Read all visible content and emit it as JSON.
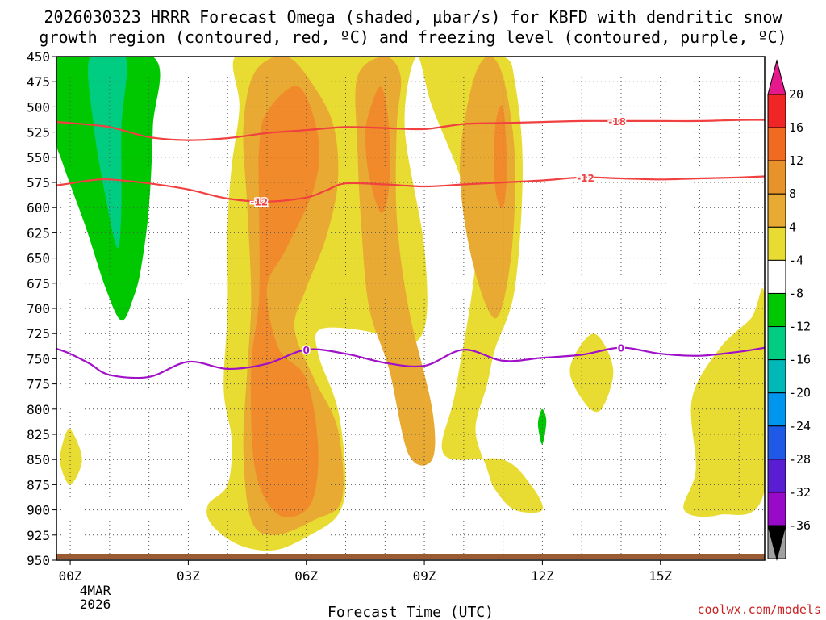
{
  "chart_data": {
    "type": "contour",
    "title_line1": "2026030323 HRRR Forecast Omega (shaded, µbar/s) for KBFD with dendritic snow",
    "title_line2": "growth region (contoured, red, ºC) and freezing level (contoured, purple, ºC)",
    "xlabel": "Forecast Time (UTC)",
    "credit": "coolwx.com/models",
    "date_line1": "4MAR",
    "date_line2": "2026",
    "x_range_hours": [
      -0.35,
      17.65
    ],
    "y_range_hpa": [
      450,
      950
    ],
    "y_ticks": [
      "450",
      "475",
      "500",
      "525",
      "550",
      "575",
      "600",
      "625",
      "650",
      "675",
      "700",
      "725",
      "750",
      "775",
      "800",
      "825",
      "850",
      "875",
      "900",
      "925",
      "950"
    ],
    "x_ticks": [
      {
        "hour": 0,
        "label": "00Z"
      },
      {
        "hour": 3,
        "label": "03Z"
      },
      {
        "hour": 6,
        "label": "06Z"
      },
      {
        "hour": 9,
        "label": "09Z"
      },
      {
        "hour": 12,
        "label": "12Z"
      },
      {
        "hour": 15,
        "label": "15Z"
      }
    ],
    "colorbar": {
      "labels": [
        "20",
        "16",
        "12",
        "8",
        "4",
        "-4",
        "-8",
        "-12",
        "-16",
        "-20",
        "-24",
        "-28",
        "-32",
        "-36"
      ],
      "colors": [
        "#e8b432",
        "#f02626",
        "#f06a20",
        "#e8922a",
        "#e8aa32",
        "#e8dc32",
        "#ffffff",
        "#00c800",
        "#00cc82",
        "#00b8b8",
        "#0096f0",
        "#1e5ae6",
        "#5a1ed2",
        "#960ac8",
        "#a0a0a0",
        "#000000"
      ]
    },
    "contours": [
      {
        "name": "-18 C isotherm",
        "color": "#f04040",
        "label": "-18",
        "points": [
          [
            -0.35,
            515
          ],
          [
            0,
            516
          ],
          [
            1,
            520
          ],
          [
            2,
            530
          ],
          [
            3,
            533
          ],
          [
            4,
            531
          ],
          [
            5,
            526
          ],
          [
            6,
            523
          ],
          [
            7,
            520
          ],
          [
            8,
            521
          ],
          [
            9,
            522
          ],
          [
            10,
            517
          ],
          [
            11,
            516
          ],
          [
            12,
            515
          ],
          [
            13,
            514
          ],
          [
            14,
            514
          ],
          [
            15,
            514
          ],
          [
            16,
            514
          ],
          [
            17,
            513
          ],
          [
            17.65,
            513
          ]
        ],
        "label_at": [
          13.9,
          514
        ]
      },
      {
        "name": "-12 C isotherm",
        "color": "#f04040",
        "label": "-12",
        "points": [
          [
            -0.35,
            578
          ],
          [
            0,
            576
          ],
          [
            0.5,
            573
          ],
          [
            1,
            572
          ],
          [
            2,
            576
          ],
          [
            3,
            582
          ],
          [
            4,
            591
          ],
          [
            5,
            594
          ],
          [
            6,
            590
          ],
          [
            6.5,
            583
          ],
          [
            7,
            576
          ],
          [
            8,
            577
          ],
          [
            9,
            579
          ],
          [
            10,
            577
          ],
          [
            11,
            575
          ],
          [
            12,
            573
          ],
          [
            13,
            570
          ],
          [
            14,
            571
          ],
          [
            15,
            572
          ],
          [
            16,
            571
          ],
          [
            17,
            570
          ],
          [
            17.65,
            569
          ]
        ],
        "label_at": [
          4.8,
          594
        ]
      },
      {
        "name": "-12 C isotherm (label 2)",
        "color": "#f04040",
        "label": "-12",
        "points": [],
        "label_at": [
          13.1,
          570
        ]
      },
      {
        "name": "0 C freezing level",
        "color": "#a010c8",
        "label": "0",
        "points": [
          [
            -0.35,
            740
          ],
          [
            0,
            745
          ],
          [
            0.5,
            755
          ],
          [
            1,
            766
          ],
          [
            2,
            768
          ],
          [
            3,
            753
          ],
          [
            4,
            760
          ],
          [
            5,
            755
          ],
          [
            6,
            741
          ],
          [
            7,
            745
          ],
          [
            8,
            754
          ],
          [
            9,
            757
          ],
          [
            10,
            741
          ],
          [
            11,
            752
          ],
          [
            12,
            749
          ],
          [
            13,
            746
          ],
          [
            14,
            739
          ],
          [
            15,
            745
          ],
          [
            16,
            747
          ],
          [
            17,
            743
          ],
          [
            17.65,
            739
          ]
        ],
        "label_at": [
          6.0,
          741
        ]
      },
      {
        "name": "0 C freezing level (label 2)",
        "color": "#a010c8",
        "label": "0",
        "points": [],
        "label_at": [
          14.0,
          739
        ]
      }
    ],
    "omega_regions": [
      {
        "value": "4",
        "color": "#e8dc32",
        "points": [
          [
            4.2,
            450
          ],
          [
            5.5,
            450
          ],
          [
            6.9,
            450
          ],
          [
            8.1,
            450
          ],
          [
            8.8,
            450
          ],
          [
            9.8,
            450
          ],
          [
            11,
            450
          ],
          [
            11.3,
            475
          ],
          [
            11.5,
            560
          ],
          [
            11.3,
            680
          ],
          [
            10.8,
            740
          ],
          [
            10.6,
            775
          ],
          [
            10.3,
            820
          ],
          [
            10.6,
            860
          ],
          [
            10.8,
            880
          ],
          [
            11.3,
            900
          ],
          [
            12,
            900
          ],
          [
            11.7,
            875
          ],
          [
            11,
            850
          ],
          [
            9.5,
            845
          ],
          [
            9.8,
            780
          ],
          [
            10.3,
            650
          ],
          [
            10,
            580
          ],
          [
            9.2,
            500
          ],
          [
            8.8,
            450
          ],
          [
            8.5,
            520
          ],
          [
            9,
            640
          ],
          [
            9,
            720
          ],
          [
            8.3,
            740
          ],
          [
            7.8,
            725
          ],
          [
            6.4,
            720
          ],
          [
            6.3,
            745
          ],
          [
            6.8,
            800
          ],
          [
            7,
            870
          ],
          [
            6.8,
            905
          ],
          [
            6.1,
            925
          ],
          [
            5.2,
            940
          ],
          [
            4.3,
            935
          ],
          [
            3.6,
            915
          ],
          [
            3.5,
            895
          ],
          [
            4,
            875
          ],
          [
            4.1,
            830
          ],
          [
            3.9,
            780
          ],
          [
            4,
            700
          ],
          [
            4,
            620
          ],
          [
            4.1,
            560
          ],
          [
            4.3,
            500
          ]
        ]
      },
      {
        "value": "8",
        "color": "#e8aa32",
        "points": [
          [
            4.7,
            465
          ],
          [
            5.5,
            450
          ],
          [
            6.2,
            480
          ],
          [
            6.7,
            520
          ],
          [
            6.8,
            575
          ],
          [
            6.5,
            630
          ],
          [
            6,
            680
          ],
          [
            5.7,
            720
          ],
          [
            6.2,
            770
          ],
          [
            6.8,
            820
          ],
          [
            6.9,
            890
          ],
          [
            6.2,
            910
          ],
          [
            5.2,
            925
          ],
          [
            4.6,
            910
          ],
          [
            4.4,
            840
          ],
          [
            4.5,
            760
          ],
          [
            4.6,
            690
          ],
          [
            4.5,
            600
          ],
          [
            4.4,
            520
          ]
        ]
      },
      {
        "value": "8b",
        "color": "#e8aa32",
        "points": [
          [
            7.3,
            470
          ],
          [
            8,
            450
          ],
          [
            8.4,
            470
          ],
          [
            8.3,
            520
          ],
          [
            8.3,
            610
          ],
          [
            8.6,
            700
          ],
          [
            9.2,
            800
          ],
          [
            9.2,
            850
          ],
          [
            8.6,
            845
          ],
          [
            8.1,
            760
          ],
          [
            7.6,
            700
          ],
          [
            7.4,
            620
          ],
          [
            7.3,
            540
          ]
        ]
      },
      {
        "value": "8c",
        "color": "#e8aa32",
        "points": [
          [
            10.2,
            480
          ],
          [
            10.6,
            450
          ],
          [
            11,
            470
          ],
          [
            11.3,
            550
          ],
          [
            11.2,
            650
          ],
          [
            10.8,
            710
          ],
          [
            10.2,
            650
          ],
          [
            9.9,
            560
          ]
        ]
      },
      {
        "value": "12",
        "color": "#f08a2a",
        "points": [
          [
            5,
            505
          ],
          [
            5.8,
            480
          ],
          [
            6.3,
            530
          ],
          [
            6.2,
            580
          ],
          [
            5.5,
            640
          ],
          [
            5,
            680
          ],
          [
            5.3,
            740
          ],
          [
            6,
            770
          ],
          [
            6.3,
            840
          ],
          [
            6.1,
            895
          ],
          [
            5.3,
            905
          ],
          [
            4.7,
            860
          ],
          [
            4.6,
            760
          ],
          [
            4.8,
            690
          ],
          [
            4.8,
            600
          ],
          [
            4.8,
            540
          ]
        ]
      },
      {
        "value": "12b",
        "color": "#f08a2a",
        "points": [
          [
            7.6,
            505
          ],
          [
            7.9,
            480
          ],
          [
            8.1,
            520
          ],
          [
            8.1,
            580
          ],
          [
            7.9,
            605
          ],
          [
            7.6,
            570
          ],
          [
            7.5,
            530
          ]
        ]
      },
      {
        "value": "12c",
        "color": "#f08a2a",
        "points": [
          [
            10.8,
            520
          ],
          [
            11,
            500
          ],
          [
            11.1,
            560
          ],
          [
            11,
            600
          ],
          [
            10.8,
            580
          ]
        ]
      },
      {
        "value": "-4",
        "color": "#00c800",
        "points": [
          [
            -0.35,
            450
          ],
          [
            2.1,
            450
          ],
          [
            2.1,
            520
          ],
          [
            2,
            600
          ],
          [
            1.8,
            660
          ],
          [
            1.6,
            690
          ],
          [
            1.3,
            712
          ],
          [
            0.9,
            680
          ],
          [
            0.4,
            620
          ],
          [
            -0.2,
            555
          ],
          [
            -0.35,
            530
          ]
        ]
      },
      {
        "value": "-8",
        "color": "#00cc82",
        "points": [
          [
            0.5,
            450
          ],
          [
            1.4,
            450
          ],
          [
            1.3,
            520
          ],
          [
            1.3,
            600
          ],
          [
            1.2,
            640
          ],
          [
            0.9,
            590
          ],
          [
            0.6,
            520
          ]
        ]
      },
      {
        "value": "4b",
        "color": "#e8dc32",
        "points": [
          [
            -0.2,
            835
          ],
          [
            0,
            820
          ],
          [
            0.3,
            850
          ],
          [
            0,
            875
          ],
          [
            -0.25,
            855
          ]
        ]
      },
      {
        "value": "4c",
        "color": "#e8dc32",
        "points": [
          [
            12.7,
            760
          ],
          [
            13.3,
            725
          ],
          [
            13.8,
            760
          ],
          [
            13.5,
            800
          ],
          [
            13.1,
            795
          ]
        ]
      },
      {
        "value": "4d",
        "color": "#e8dc32",
        "points": [
          [
            15.8,
            790
          ],
          [
            16.5,
            740
          ],
          [
            17.3,
            710
          ],
          [
            17.65,
            690
          ],
          [
            17.65,
            880
          ],
          [
            16.5,
            905
          ],
          [
            15.6,
            900
          ],
          [
            15.9,
            860
          ]
        ]
      },
      {
        "value": "-4b",
        "color": "#00c800",
        "points": [
          [
            11.9,
            810
          ],
          [
            12,
            800
          ],
          [
            12.1,
            812
          ],
          [
            12,
            835
          ],
          [
            11.9,
            820
          ]
        ]
      }
    ]
  }
}
